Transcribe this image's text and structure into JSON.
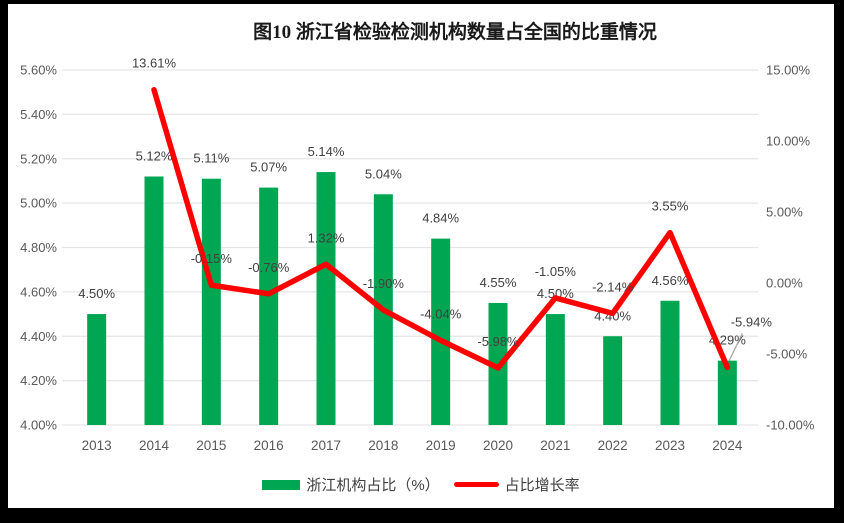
{
  "window": {
    "frame_color": "#000000",
    "canvas_color": "#FFFFFF"
  },
  "chart_data": {
    "type": "combo-bar-line",
    "title": "图10  浙江省检验检测机构数量占全国的比重情况",
    "categories": [
      "2013",
      "2014",
      "2015",
      "2016",
      "2017",
      "2018",
      "2019",
      "2020",
      "2021",
      "2022",
      "2023",
      "2024"
    ],
    "series": [
      {
        "name": "浙江机构占比（%）",
        "type": "bar",
        "axis": "left",
        "color": "#00A651",
        "values": [
          4.5,
          5.12,
          5.11,
          5.07,
          5.14,
          5.04,
          4.84,
          4.55,
          4.5,
          4.4,
          4.56,
          4.29
        ]
      },
      {
        "name": "占比增长率",
        "type": "line",
        "axis": "right",
        "color": "#FF0000",
        "values": [
          null,
          13.61,
          -0.15,
          -0.76,
          1.32,
          -1.9,
          -4.04,
          -5.98,
          -1.05,
          -2.14,
          3.55,
          -5.94
        ]
      }
    ],
    "left_axis": {
      "min": 4.0,
      "max": 5.6,
      "step": 0.2,
      "format": "0.00%"
    },
    "right_axis": {
      "min": -10.0,
      "max": 15.0,
      "step": 5.0,
      "format": "0.00%"
    },
    "grid": true,
    "data_labels": true,
    "legend_position": "bottom"
  },
  "styles": {
    "axis_text_color": "#595959",
    "label_text_color": "#404040",
    "gridline_color": "#E5E5E5",
    "leader_line_color": "#A6A6A6"
  }
}
